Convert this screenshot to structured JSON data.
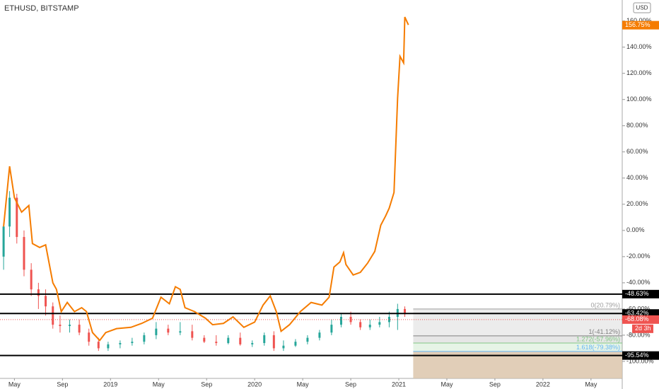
{
  "chart_data": {
    "type": "line",
    "title": "ETHUSD, BITSTAMP",
    "currency": "USD",
    "xlim": [
      2.8,
      54.6
    ],
    "ylim": [
      -113,
      176
    ],
    "xticks": [
      {
        "value": 4,
        "label": "May"
      },
      {
        "value": 8,
        "label": "Sep"
      },
      {
        "value": 12,
        "label": "2019"
      },
      {
        "value": 16,
        "label": "May"
      },
      {
        "value": 20,
        "label": "Sep"
      },
      {
        "value": 24,
        "label": "2020"
      },
      {
        "value": 28,
        "label": "May"
      },
      {
        "value": 32,
        "label": "Sep"
      },
      {
        "value": 36,
        "label": "2021"
      },
      {
        "value": 40,
        "label": "May"
      },
      {
        "value": 44,
        "label": "Sep"
      },
      {
        "value": 48,
        "label": "2022"
      },
      {
        "value": 52,
        "label": "May"
      }
    ],
    "yticks": [
      {
        "value": 160,
        "label": "160.00%"
      },
      {
        "value": 140,
        "label": "140.00%"
      },
      {
        "value": 120,
        "label": "120.00%"
      },
      {
        "value": 100,
        "label": "100.00%"
      },
      {
        "value": 80,
        "label": "80.00%"
      },
      {
        "value": 60,
        "label": "60.00%"
      },
      {
        "value": 40,
        "label": "40.00%"
      },
      {
        "value": 20,
        "label": "20.00%"
      },
      {
        "value": 0,
        "label": "0.00%"
      },
      {
        "value": -20,
        "label": "-20.00%"
      },
      {
        "value": -40,
        "label": "-40.00%"
      },
      {
        "value": -60,
        "label": "-60.00%"
      },
      {
        "value": -80,
        "label": "-80.00%"
      },
      {
        "value": -100,
        "label": "-100.00%"
      }
    ],
    "series": [
      {
        "color": "#f57c00",
        "x": [
          3.1,
          3.6,
          4,
          4.6,
          5.2,
          5.5,
          6.1,
          6.6,
          7.2,
          7.5,
          7.9,
          8.4,
          9,
          9.6,
          10,
          10.5,
          11.1,
          11.6,
          12.5,
          13.7,
          14.6,
          15.5,
          16.2,
          16.9,
          17.4,
          17.8,
          18.2,
          19,
          19.9,
          20.5,
          21.4,
          22.2,
          23.1,
          24,
          24.7,
          25.3,
          25.8,
          26.2,
          26.9,
          27.8,
          28.7,
          29.6,
          30.2,
          30.6,
          31.1,
          31.4,
          31.6,
          32.2,
          32.8,
          33.4,
          34,
          34.5,
          34.9,
          35.2,
          35.6,
          35.9,
          36.1,
          36.4,
          36.5,
          36.8
        ],
        "values": [
          3,
          49,
          25,
          14,
          19,
          -10,
          -13,
          -11,
          -40,
          -45,
          -62,
          -55,
          -62,
          -59,
          -62,
          -78,
          -84,
          -78,
          -75,
          -74,
          -71,
          -67,
          -51,
          -56,
          -43,
          -45,
          -59,
          -62,
          -67,
          -72,
          -71,
          -66,
          -74,
          -70,
          -57,
          -50,
          -62,
          -77,
          -72,
          -62,
          -55,
          -57,
          -51,
          -28,
          -24,
          -17,
          -26,
          -34,
          -32,
          -25,
          -16,
          4,
          11,
          17,
          29,
          101,
          133,
          128,
          163,
          157
        ]
      }
    ],
    "last_value": {
      "value": 156.75,
      "label": "156.75%",
      "color": "#f57c00"
    },
    "candles": {
      "up_color": "#26a69a",
      "down_color": "#ef5350",
      "x": [
        3.1,
        3.6,
        4.2,
        4.8,
        5.4,
        6.0,
        6.6,
        7.2,
        7.8,
        8.6,
        9.4,
        10.2,
        11.0,
        11.8,
        12.8,
        13.8,
        14.8,
        15.8,
        16.8,
        17.8,
        18.8,
        19.8,
        20.8,
        21.8,
        22.8,
        23.8,
        24.8,
        25.6,
        26.4,
        27.4,
        28.4,
        29.4,
        30.4,
        31.2,
        32.0,
        32.8,
        33.6,
        34.4,
        35.2,
        35.9,
        36.5
      ],
      "open": [
        -20,
        3,
        25,
        -5,
        -30,
        -45,
        -50,
        -58,
        -72,
        -73,
        -72,
        -78,
        -85,
        -90,
        -87,
        -86,
        -85,
        -80,
        -75,
        -78,
        -77,
        -82,
        -85,
        -86,
        -82,
        -87,
        -86,
        -80,
        -90,
        -88,
        -85,
        -82,
        -78,
        -72,
        -66,
        -70,
        -74,
        -72,
        -70,
        -66,
        -60
      ],
      "high": [
        5,
        30,
        28,
        0,
        -25,
        -40,
        -45,
        -55,
        -65,
        -68,
        -68,
        -75,
        -82,
        -85,
        -84,
        -82,
        -78,
        -70,
        -72,
        -70,
        -72,
        -80,
        -80,
        -80,
        -78,
        -84,
        -78,
        -77,
        -84,
        -83,
        -80,
        -76,
        -68,
        -63,
        -62,
        -68,
        -68,
        -66,
        -62,
        -56,
        -58
      ],
      "low": [
        -30,
        -5,
        -10,
        -35,
        -50,
        -60,
        -65,
        -75,
        -78,
        -78,
        -80,
        -88,
        -92,
        -92,
        -90,
        -88,
        -87,
        -83,
        -80,
        -80,
        -84,
        -86,
        -88,
        -87,
        -88,
        -89,
        -88,
        -92,
        -92,
        -89,
        -87,
        -84,
        -80,
        -74,
        -72,
        -76,
        -76,
        -74,
        -74,
        -76,
        -66
      ],
      "close": [
        3,
        25,
        -5,
        -30,
        -45,
        -50,
        -58,
        -72,
        -73,
        -72,
        -78,
        -85,
        -90,
        -87,
        -86,
        -85,
        -80,
        -75,
        -78,
        -77,
        -82,
        -85,
        -86,
        -82,
        -87,
        -86,
        -80,
        -90,
        -88,
        -85,
        -82,
        -78,
        -72,
        -66,
        -70,
        -74,
        -72,
        -70,
        -66,
        -60,
        -64
      ]
    },
    "candle_last": {
      "value": -68.08,
      "label": "-68.08%",
      "color": "#ef5350"
    },
    "countdown": "2d 3h",
    "hlines": [
      {
        "value": -48.63,
        "label": "-48.63%"
      },
      {
        "value": -63.42,
        "label": "-63.42%"
      },
      {
        "value": -95.54,
        "label": "-95.54%"
      }
    ],
    "fib": {
      "start": 37.2,
      "fill_below": "#d9c2a6",
      "levels": [
        {
          "value": -60,
          "label": "0(20.79%)",
          "color": "#9e9e9e"
        },
        {
          "value": -80.5,
          "label": "1(-41.12%)",
          "color": "#808080"
        },
        {
          "value": -86,
          "label": "1.272(-57.96%)",
          "color": "#81c784"
        },
        {
          "value": -92.4,
          "label": "1.618(-79.38%)",
          "color": "#64b5f6"
        }
      ]
    }
  }
}
